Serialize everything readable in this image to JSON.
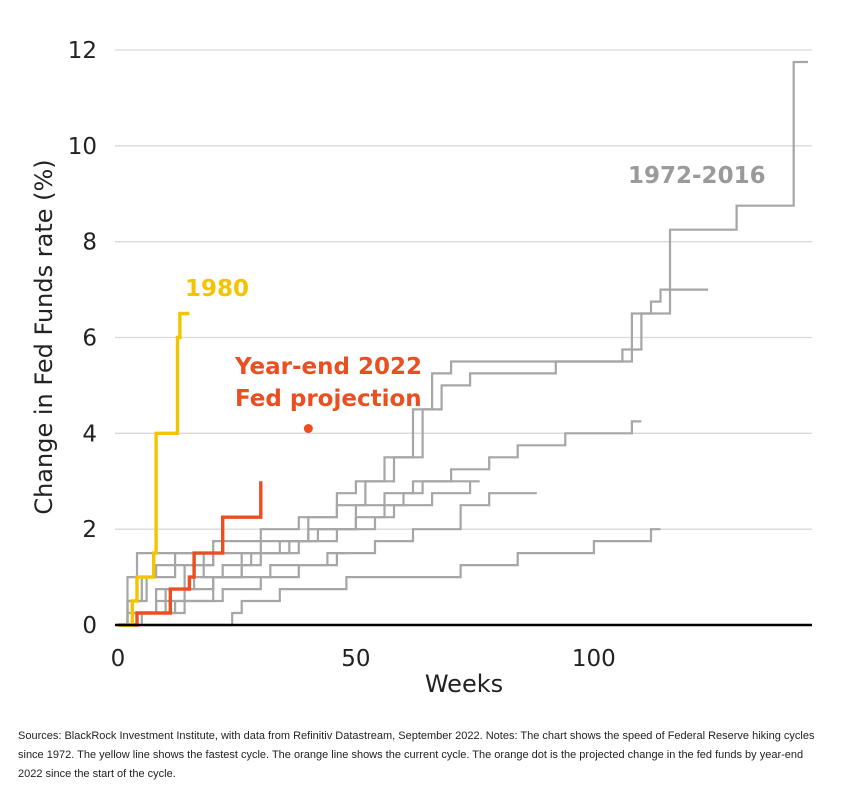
{
  "chart_data": {
    "type": "line",
    "title": "",
    "xlabel": "Weeks",
    "ylabel": "Change in Fed Funds rate (%)",
    "xlim": [
      0,
      145
    ],
    "ylim": [
      0,
      12
    ],
    "xticks": [
      "0",
      "50",
      "100"
    ],
    "yticks": [
      "0",
      "2",
      "4",
      "6",
      "8",
      "10",
      "12"
    ],
    "grid": "horizontal",
    "colors": {
      "historical": "#a6a6a6",
      "cycle_1980": "#f5c400",
      "current": "#ec4e20",
      "grid": "#d9d9d9",
      "axis": "#000000"
    },
    "annotations": {
      "historical_label": "1972-2016",
      "fastest_label": "1980",
      "projection_label_line1": "Year-end 2022",
      "projection_label_line2": "Fed projection"
    },
    "series": [
      {
        "group": "historical",
        "steps": [
          [
            0,
            0
          ],
          [
            2,
            0.25
          ],
          [
            10,
            0.75
          ],
          [
            14,
            1.25
          ],
          [
            20,
            1.75
          ],
          [
            22,
            1.75
          ],
          [
            30,
            2.0
          ],
          [
            38,
            2.25
          ],
          [
            46,
            2.75
          ],
          [
            50,
            3.0
          ],
          [
            56,
            3.5
          ],
          [
            62,
            4.5
          ],
          [
            66,
            5.25
          ],
          [
            70,
            5.5
          ],
          [
            100,
            5.5
          ],
          [
            106,
            5.75
          ],
          [
            110,
            6.5
          ],
          [
            116,
            8.25
          ],
          [
            124,
            8.25
          ],
          [
            130,
            8.75
          ],
          [
            140,
            8.75
          ],
          [
            142,
            11.75
          ],
          [
            145,
            11.75
          ]
        ]
      },
      {
        "group": "historical",
        "steps": [
          [
            0,
            0
          ],
          [
            4,
            0.25
          ],
          [
            12,
            0.5
          ],
          [
            20,
            1.0
          ],
          [
            26,
            1.5
          ],
          [
            34,
            1.75
          ],
          [
            40,
            2.25
          ],
          [
            46,
            2.5
          ],
          [
            52,
            3.0
          ],
          [
            58,
            3.5
          ],
          [
            64,
            4.5
          ],
          [
            68,
            5.0
          ],
          [
            74,
            5.25
          ],
          [
            92,
            5.5
          ],
          [
            104,
            5.5
          ],
          [
            108,
            6.5
          ],
          [
            112,
            6.75
          ],
          [
            114,
            7.0
          ],
          [
            124,
            7.0
          ]
        ]
      },
      {
        "group": "historical",
        "steps": [
          [
            0,
            0
          ],
          [
            3,
            0.25
          ],
          [
            8,
            0.75
          ],
          [
            16,
            1.0
          ],
          [
            22,
            1.25
          ],
          [
            28,
            1.5
          ],
          [
            36,
            1.75
          ],
          [
            42,
            2.0
          ],
          [
            50,
            2.25
          ],
          [
            56,
            2.5
          ],
          [
            60,
            2.75
          ],
          [
            64,
            3.0
          ],
          [
            70,
            3.25
          ],
          [
            78,
            3.5
          ],
          [
            84,
            3.75
          ],
          [
            90,
            3.75
          ],
          [
            94,
            4.0
          ],
          [
            104,
            4.0
          ],
          [
            108,
            4.25
          ],
          [
            110,
            4.25
          ]
        ]
      },
      {
        "group": "historical",
        "steps": [
          [
            0,
            0
          ],
          [
            2,
            0.5
          ],
          [
            6,
            1.0
          ],
          [
            12,
            1.25
          ],
          [
            20,
            1.5
          ],
          [
            30,
            1.75
          ],
          [
            40,
            2.0
          ],
          [
            50,
            2.5
          ],
          [
            56,
            2.75
          ],
          [
            62,
            3.0
          ],
          [
            70,
            3.0
          ],
          [
            74,
            3.0
          ]
        ]
      },
      {
        "group": "historical",
        "steps": [
          [
            0,
            0
          ],
          [
            5,
            0.25
          ],
          [
            14,
            0.5
          ],
          [
            22,
            0.75
          ],
          [
            30,
            1.0
          ],
          [
            38,
            1.25
          ],
          [
            46,
            1.5
          ],
          [
            54,
            1.75
          ],
          [
            62,
            2.0
          ],
          [
            72,
            2.5
          ],
          [
            78,
            2.75
          ],
          [
            88,
            2.75
          ]
        ]
      },
      {
        "group": "historical",
        "steps": [
          [
            0,
            0
          ],
          [
            2,
            1.0
          ],
          [
            4,
            1.5
          ],
          [
            10,
            1.5
          ],
          [
            18,
            1.0
          ],
          [
            26,
            1.25
          ],
          [
            30,
            1.5
          ],
          [
            38,
            1.75
          ],
          [
            46,
            2.0
          ],
          [
            54,
            2.25
          ],
          [
            58,
            2.5
          ],
          [
            66,
            2.75
          ],
          [
            74,
            3.0
          ],
          [
            76,
            3.0
          ]
        ]
      },
      {
        "group": "historical",
        "steps": [
          [
            0,
            0
          ],
          [
            24,
            0.25
          ],
          [
            26,
            0.5
          ],
          [
            34,
            0.75
          ],
          [
            44,
            0.75
          ],
          [
            48,
            1.0
          ],
          [
            60,
            1.0
          ],
          [
            72,
            1.25
          ],
          [
            80,
            1.25
          ],
          [
            84,
            1.5
          ],
          [
            96,
            1.5
          ],
          [
            100,
            1.75
          ],
          [
            110,
            1.75
          ],
          [
            112,
            2.0
          ],
          [
            114,
            2.0
          ]
        ]
      },
      {
        "group": "historical",
        "steps": [
          [
            0,
            0
          ],
          [
            3,
            0.25
          ],
          [
            8,
            0.5
          ],
          [
            14,
            0.75
          ],
          [
            20,
            1.0
          ],
          [
            28,
            1.0
          ],
          [
            32,
            1.25
          ],
          [
            40,
            1.25
          ],
          [
            44,
            1.5
          ],
          [
            48,
            1.5
          ]
        ]
      },
      {
        "group": "historical",
        "steps": [
          [
            0,
            0
          ],
          [
            2,
            0.5
          ],
          [
            5,
            1.0
          ],
          [
            8,
            1.25
          ],
          [
            12,
            1.5
          ],
          [
            16,
            1.5
          ]
        ]
      },
      {
        "group": "cycle_1980",
        "name": "1980",
        "steps": [
          [
            0,
            0
          ],
          [
            3,
            0.5
          ],
          [
            4,
            1.0
          ],
          [
            7,
            1.0
          ],
          [
            7.5,
            1.5
          ],
          [
            8,
            4.0
          ],
          [
            12,
            4.0
          ],
          [
            12.5,
            6.0
          ],
          [
            13,
            6.5
          ],
          [
            15,
            6.5
          ]
        ]
      },
      {
        "group": "current",
        "steps": [
          [
            0,
            0
          ],
          [
            4,
            0.25
          ],
          [
            10,
            0.25
          ],
          [
            11,
            0.75
          ],
          [
            14,
            0.75
          ],
          [
            15,
            1.0
          ],
          [
            16,
            1.5
          ],
          [
            21,
            1.5
          ],
          [
            22,
            2.25
          ],
          [
            29,
            2.25
          ],
          [
            30,
            3.0
          ]
        ]
      }
    ],
    "projection_point": {
      "x": 40,
      "y": 4.1
    }
  },
  "footer": {
    "sources_text": "Sources: BlackRock Investment Institute, with data from Refinitiv Datastream, September 2022. Notes: The chart shows the speed of Federal Reserve hiking cycles since 1972. The yellow line shows the fastest cycle. The orange line shows the current cycle. The orange dot is the projected change in the fed funds by year-end 2022 since the start of the cycle."
  }
}
